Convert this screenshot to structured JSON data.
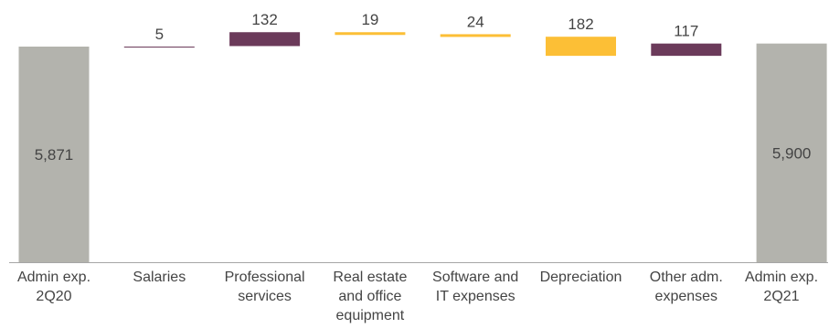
{
  "chart_data": {
    "type": "waterfall",
    "title": "",
    "xlabel": "",
    "ylabel": "",
    "categories": [
      "Admin exp.\n2Q20",
      "Salaries",
      "Professional\nservices",
      "Real estate\nand office\nequipment",
      "Software and\nIT expenses",
      "Depreciation",
      "Other adm.\nexpenses",
      "Admin exp.\n2Q21"
    ],
    "value_labels": [
      "5,871",
      "5",
      "132",
      "19",
      "24",
      "182",
      "117",
      "5,900"
    ],
    "steps": [
      {
        "kind": "total",
        "value": 5871
      },
      {
        "kind": "increase",
        "value": 5
      },
      {
        "kind": "increase",
        "value": 132
      },
      {
        "kind": "decrease",
        "value": 19
      },
      {
        "kind": "decrease",
        "value": 24
      },
      {
        "kind": "decrease",
        "value": 182
      },
      {
        "kind": "increase",
        "value": 117
      },
      {
        "kind": "total",
        "value": 5900
      }
    ],
    "colors": {
      "total": "#b3b3ad",
      "increase": "#6b3a5a",
      "decrease": "#fcbf36",
      "axis": "#a6a6a6",
      "text": "#444444"
    },
    "grid": false,
    "legend": "none"
  }
}
